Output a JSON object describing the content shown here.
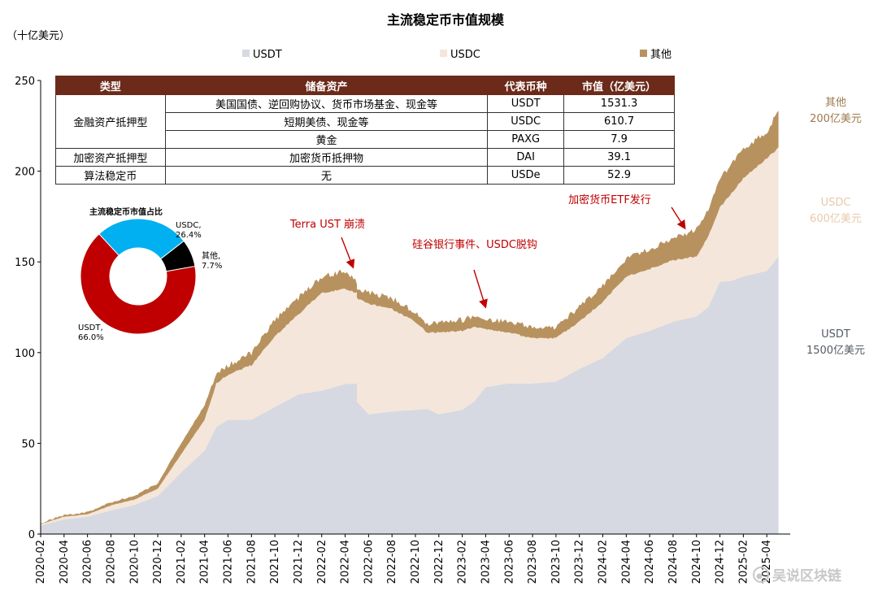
{
  "chart_data": {
    "type": "area",
    "title": "主流稳定币市值规模",
    "unit_label": "（十亿美元）",
    "ylim": [
      0,
      250
    ],
    "yticks": [
      0,
      50,
      100,
      150,
      200,
      250
    ],
    "xlim": [
      "2020-02",
      "2025-05"
    ],
    "x_tick_labels": [
      "2020-02",
      "2020-04",
      "2020-06",
      "2020-08",
      "2020-10",
      "2020-12",
      "2021-02",
      "2021-04",
      "2021-06",
      "2021-08",
      "2021-10",
      "2021-12",
      "2022-02",
      "2022-04",
      "2022-06",
      "2022-08",
      "2022-10",
      "2022-12",
      "2023-02",
      "2023-04",
      "2023-06",
      "2023-08",
      "2023-10",
      "2023-12",
      "2024-02",
      "2024-04",
      "2024-06",
      "2024-08",
      "2024-10",
      "2024-12",
      "2025-02",
      "2025-04"
    ],
    "legend_position": "top",
    "stacked": true,
    "series": [
      {
        "name": "USDT",
        "color": "#d6d9e2",
        "points": [
          [
            "2020-02",
            4.6
          ],
          [
            "2020-04",
            8
          ],
          [
            "2020-06",
            9.5
          ],
          [
            "2020-08",
            13
          ],
          [
            "2020-10",
            16
          ],
          [
            "2020-12",
            21
          ],
          [
            "2021-02",
            34
          ],
          [
            "2021-04",
            46
          ],
          [
            "2021-05",
            59
          ],
          [
            "2021-06",
            63
          ],
          [
            "2021-08",
            63
          ],
          [
            "2021-10",
            70
          ],
          [
            "2021-12",
            77
          ],
          [
            "2022-02",
            79
          ],
          [
            "2022-04",
            82.7
          ],
          [
            "2022-05",
            83
          ],
          [
            "2022-05",
            73
          ],
          [
            "2022-06",
            66
          ],
          [
            "2022-08",
            67.5
          ],
          [
            "2022-10",
            68.5
          ],
          [
            "2022-11",
            69
          ],
          [
            "2022-12",
            66
          ],
          [
            "2023-02",
            68.5
          ],
          [
            "2023-03",
            73
          ],
          [
            "2023-04",
            81
          ],
          [
            "2023-06",
            83
          ],
          [
            "2023-08",
            83
          ],
          [
            "2023-10",
            84
          ],
          [
            "2023-12",
            91
          ],
          [
            "2024-02",
            97
          ],
          [
            "2024-04",
            108
          ],
          [
            "2024-06",
            112
          ],
          [
            "2024-08",
            117
          ],
          [
            "2024-10",
            120
          ],
          [
            "2024-11",
            125
          ],
          [
            "2024-12",
            139
          ],
          [
            "2025-01",
            139.5
          ],
          [
            "2025-02",
            142
          ],
          [
            "2025-04",
            145
          ],
          [
            "2025-05",
            153
          ]
        ]
      },
      {
        "name": "USDC",
        "color": "#f4e6da",
        "points": [
          [
            "2020-02",
            5.4
          ],
          [
            "2020-04",
            9.5
          ],
          [
            "2020-06",
            10.9
          ],
          [
            "2020-08",
            15.8
          ],
          [
            "2020-10",
            19
          ],
          [
            "2020-12",
            25
          ],
          [
            "2021-02",
            44
          ],
          [
            "2021-04",
            63
          ],
          [
            "2021-05",
            83
          ],
          [
            "2021-06",
            88
          ],
          [
            "2021-08",
            93
          ],
          [
            "2021-10",
            109
          ],
          [
            "2021-12",
            121
          ],
          [
            "2022-02",
            133
          ],
          [
            "2022-04",
            135
          ],
          [
            "2022-05",
            133
          ],
          [
            "2022-05",
            130
          ],
          [
            "2022-06",
            127
          ],
          [
            "2022-08",
            124
          ],
          [
            "2022-10",
            117
          ],
          [
            "2022-11",
            111
          ],
          [
            "2022-12",
            111
          ],
          [
            "2023-02",
            112
          ],
          [
            "2023-03",
            114
          ],
          [
            "2023-04",
            113
          ],
          [
            "2023-06",
            111
          ],
          [
            "2023-08",
            108
          ],
          [
            "2023-10",
            108
          ],
          [
            "2023-12",
            117
          ],
          [
            "2024-02",
            128
          ],
          [
            "2024-04",
            142
          ],
          [
            "2024-06",
            146
          ],
          [
            "2024-08",
            151
          ],
          [
            "2024-10",
            153
          ],
          [
            "2024-11",
            164
          ],
          [
            "2024-12",
            180
          ],
          [
            "2025-01",
            188
          ],
          [
            "2025-02",
            196
          ],
          [
            "2025-04",
            207
          ],
          [
            "2025-05",
            213
          ]
        ]
      },
      {
        "name": "其他",
        "color": "#b8925e",
        "points": [
          [
            "2020-02",
            6
          ],
          [
            "2020-04",
            10.5
          ],
          [
            "2020-06",
            12
          ],
          [
            "2020-08",
            17.5
          ],
          [
            "2020-10",
            21
          ],
          [
            "2020-12",
            28
          ],
          [
            "2021-02",
            50
          ],
          [
            "2021-04",
            71
          ],
          [
            "2021-05",
            88
          ],
          [
            "2021-06",
            93
          ],
          [
            "2021-08",
            100
          ],
          [
            "2021-10",
            118
          ],
          [
            "2021-12",
            130
          ],
          [
            "2022-02",
            142
          ],
          [
            "2022-04",
            145
          ],
          [
            "2022-05",
            139
          ],
          [
            "2022-05",
            135
          ],
          [
            "2022-06",
            133
          ],
          [
            "2022-08",
            130
          ],
          [
            "2022-10",
            122
          ],
          [
            "2022-11",
            116
          ],
          [
            "2022-12",
            117
          ],
          [
            "2023-02",
            118
          ],
          [
            "2023-03",
            120
          ],
          [
            "2023-04",
            118
          ],
          [
            "2023-06",
            117
          ],
          [
            "2023-08",
            114
          ],
          [
            "2023-10",
            114
          ],
          [
            "2023-12",
            125
          ],
          [
            "2024-02",
            137
          ],
          [
            "2024-04",
            152
          ],
          [
            "2024-06",
            157
          ],
          [
            "2024-08",
            163
          ],
          [
            "2024-10",
            168
          ],
          [
            "2024-11",
            178
          ],
          [
            "2024-12",
            195
          ],
          [
            "2025-01",
            205
          ],
          [
            "2025-02",
            212
          ],
          [
            "2025-04",
            222
          ],
          [
            "2025-05",
            233
          ]
        ]
      }
    ],
    "annotations": [
      {
        "text": "Terra UST 崩溃",
        "target": [
          "2022-05",
          146
        ],
        "color": "#c00000"
      },
      {
        "text": "硅谷银行事件、USDC脱钩",
        "target": [
          "2023-04",
          122
        ],
        "color": "#c00000"
      },
      {
        "text": "加密货币ETF发行",
        "target": [
          "2024-09",
          168
        ],
        "color": "#c00000"
      }
    ],
    "side_labels": [
      {
        "series": "其他",
        "lines": [
          "其他",
          "200亿美元"
        ],
        "color": "#9c7a4e"
      },
      {
        "series": "USDC",
        "lines": [
          "USDC",
          "600亿美元"
        ],
        "color": "#e8c9ad"
      },
      {
        "series": "USDT",
        "lines": [
          "USDT",
          "1500亿美元"
        ],
        "color": "#555a66"
      }
    ],
    "pie": {
      "type": "pie",
      "title": "主流稳定币市值占比",
      "slices": [
        {
          "name": "USDT",
          "label": "USDT,",
          "pct_label": "66.0%",
          "value": 66.0,
          "color": "#c00000"
        },
        {
          "name": "USDC",
          "label": "USDC,",
          "pct_label": "26.4%",
          "value": 26.4,
          "color": "#00b0f0"
        },
        {
          "name": "其他",
          "label": "其他,",
          "pct_label": "7.7%",
          "value": 7.7,
          "color": "#000000"
        }
      ]
    },
    "table": {
      "type": "table",
      "headers": [
        "类型",
        "储备资产",
        "代表币种",
        "市值（亿美元）"
      ],
      "groups": [
        {
          "type": "金融资产抵押型",
          "rows": [
            {
              "reserve": "美国国债、逆回购协议、货币市场基金、现金等",
              "coin": "USDT",
              "value": "1531.3"
            },
            {
              "reserve": "短期美债、现金等",
              "coin": "USDC",
              "value": "610.7"
            },
            {
              "reserve": "黄金",
              "coin": "PAXG",
              "value": "7.9"
            }
          ]
        },
        {
          "type": "加密资产抵押型",
          "rows": [
            {
              "reserve": "加密货币抵押物",
              "coin": "DAI",
              "value": "39.1"
            }
          ]
        },
        {
          "type": "算法稳定币",
          "rows": [
            {
              "reserve": "无",
              "coin": "USDe",
              "value": "52.9"
            }
          ]
        }
      ]
    }
  },
  "watermark": {
    "text": "吴说区块链",
    "icon": "weibo-icon"
  }
}
